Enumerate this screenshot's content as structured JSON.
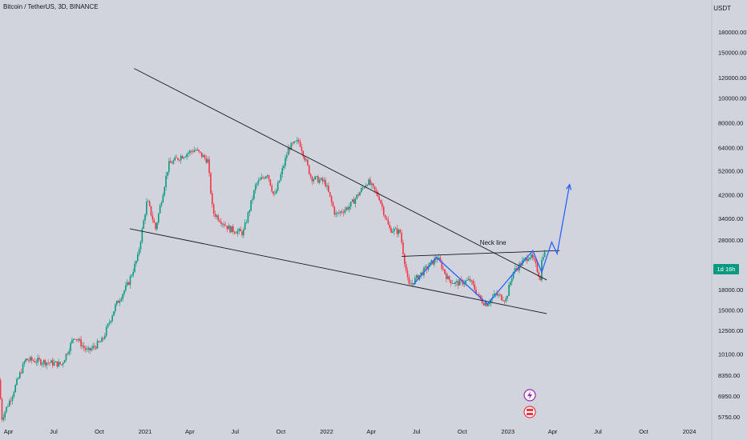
{
  "header": {
    "title": "Bitcoin / TetherUS, 3D, BINANCE",
    "unit": "USDT"
  },
  "countdown_badge": "1d 16h",
  "colors": {
    "up": "#089981",
    "down": "#f23645",
    "trend": "#131722",
    "projection": "#2962ff",
    "background": "#d1d4dc"
  },
  "chart_data": {
    "type": "candlestick",
    "title": "Bitcoin / TetherUS, 3D, BINANCE",
    "yscale": "log",
    "ylim": [
      5400,
      240000
    ],
    "xlim": [
      "2020-03-15",
      "2024-02-15"
    ],
    "y_ticks": [
      5750,
      6950,
      8350,
      10100,
      12500,
      15000,
      18000,
      22000,
      28000,
      34000,
      42000,
      52000,
      64000,
      80000,
      100000,
      120000,
      150000,
      180000
    ],
    "y_tick_labels": [
      "5750.00",
      "6950.00",
      "8350.00",
      "10100.00",
      "12500.00",
      "15000.00",
      "18000.00",
      "",
      "28000.00",
      "34000.00",
      "42000.00",
      "52000.00",
      "64000.00",
      "80000.00",
      "100000.00",
      "120000.00",
      "150000.00",
      "180000.00"
    ],
    "x_ticks": [
      {
        "date": "2020-04-01",
        "label": "Apr"
      },
      {
        "date": "2020-07-01",
        "label": "Jul"
      },
      {
        "date": "2020-10-01",
        "label": "Oct"
      },
      {
        "date": "2021-01-01",
        "label": "2021"
      },
      {
        "date": "2021-04-01",
        "label": "Apr"
      },
      {
        "date": "2021-07-01",
        "label": "Jul"
      },
      {
        "date": "2021-10-01",
        "label": "Oct"
      },
      {
        "date": "2022-01-01",
        "label": "2022"
      },
      {
        "date": "2022-04-01",
        "label": "Apr"
      },
      {
        "date": "2022-07-01",
        "label": "Jul"
      },
      {
        "date": "2022-10-01",
        "label": "Oct"
      },
      {
        "date": "2023-01-01",
        "label": "2023"
      },
      {
        "date": "2023-04-01",
        "label": "Apr"
      },
      {
        "date": "2023-07-01",
        "label": "Jul"
      },
      {
        "date": "2023-10-01",
        "label": "Oct"
      },
      {
        "date": "2024-01-01",
        "label": "2024"
      }
    ],
    "price_path": [
      [
        "2020-03-16",
        8000
      ],
      [
        "2020-03-22",
        5700
      ],
      [
        "2020-04-10",
        6900
      ],
      [
        "2020-05-08",
        9600
      ],
      [
        "2020-06-01",
        9500
      ],
      [
        "2020-07-20",
        9200
      ],
      [
        "2020-08-15",
        11900
      ],
      [
        "2020-09-10",
        10300
      ],
      [
        "2020-10-10",
        11400
      ],
      [
        "2020-11-05",
        15500
      ],
      [
        "2020-12-01",
        19000
      ],
      [
        "2020-12-20",
        24000
      ],
      [
        "2021-01-08",
        40000
      ],
      [
        "2021-01-25",
        31000
      ],
      [
        "2021-02-20",
        55000
      ],
      [
        "2021-03-15",
        59000
      ],
      [
        "2021-04-14",
        63000
      ],
      [
        "2021-05-10",
        57000
      ],
      [
        "2021-05-20",
        36000
      ],
      [
        "2021-06-22",
        31000
      ],
      [
        "2021-07-20",
        29800
      ],
      [
        "2021-08-15",
        46000
      ],
      [
        "2021-09-07",
        51000
      ],
      [
        "2021-09-21",
        41000
      ],
      [
        "2021-10-20",
        64000
      ],
      [
        "2021-11-10",
        68000
      ],
      [
        "2021-12-04",
        49000
      ],
      [
        "2022-01-01",
        47000
      ],
      [
        "2022-01-22",
        35000
      ],
      [
        "2022-02-20",
        38000
      ],
      [
        "2022-03-28",
        47500
      ],
      [
        "2022-04-20",
        41000
      ],
      [
        "2022-05-10",
        31000
      ],
      [
        "2022-06-01",
        30000
      ],
      [
        "2022-06-18",
        18500
      ],
      [
        "2022-07-05",
        20000
      ],
      [
        "2022-08-15",
        24000
      ],
      [
        "2022-09-05",
        19800
      ],
      [
        "2022-09-20",
        19000
      ],
      [
        "2022-10-20",
        19500
      ],
      [
        "2022-11-09",
        16500
      ],
      [
        "2022-11-21",
        15800
      ],
      [
        "2022-12-10",
        17200
      ],
      [
        "2022-12-31",
        16500
      ],
      [
        "2023-01-14",
        21000
      ],
      [
        "2023-02-16",
        24500
      ],
      [
        "2023-02-25",
        23200
      ],
      [
        "2023-03-10",
        20000
      ],
      [
        "2023-03-14",
        24500
      ],
      [
        "2023-03-16",
        24800
      ]
    ],
    "trendlines": [
      {
        "name": "descending-resistance",
        "from": [
          "2020-12-10",
          130000
        ],
        "to": [
          "2023-03-20",
          19600
        ]
      },
      {
        "name": "descending-support",
        "from": [
          "2020-12-01",
          31000
        ],
        "to": [
          "2023-03-20",
          14500
        ]
      },
      {
        "name": "neck-line",
        "from": [
          "2022-06-01",
          24200
        ],
        "to": [
          "2023-04-15",
          25500
        ]
      }
    ],
    "projection_path": [
      [
        "2022-06-25",
        18800
      ],
      [
        "2022-08-10",
        24000
      ],
      [
        "2022-11-21",
        15800
      ],
      [
        "2023-02-20",
        25500
      ],
      [
        "2023-03-10",
        21000
      ],
      [
        "2023-03-30",
        27500
      ],
      [
        "2023-04-10",
        24800
      ],
      [
        "2023-05-05",
        46000
      ]
    ],
    "annotations": [
      {
        "text": "Neck line",
        "at": [
          "2022-12-02",
          26800
        ]
      }
    ]
  }
}
